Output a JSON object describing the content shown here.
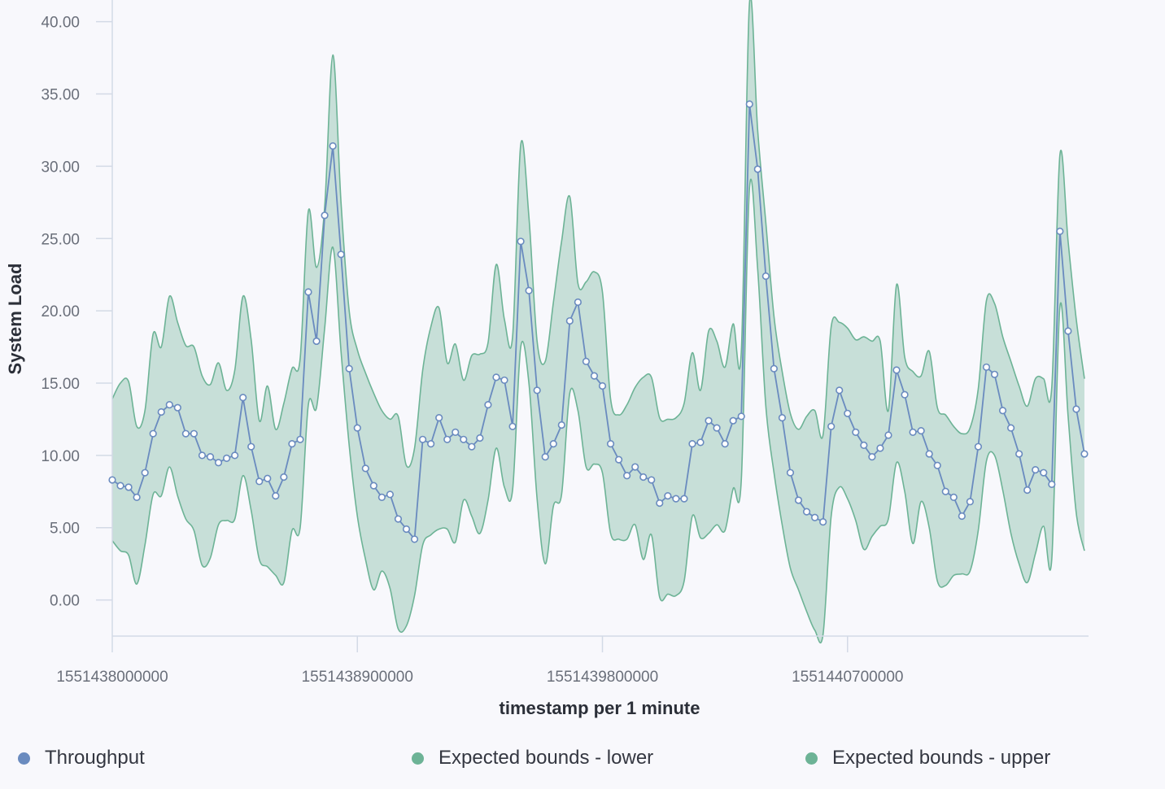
{
  "chart_data": {
    "type": "line",
    "title": "",
    "xlabel": "timestamp per 1 minute",
    "ylabel": "System Load",
    "xlim": [
      1551438000000,
      1551441585000
    ],
    "ylim": [
      -2.5,
      41.5
    ],
    "x_start": 1551438000000,
    "x_step": 30000,
    "x_ticks": [
      1551438000000,
      1551438900000,
      1551439800000,
      1551440700000
    ],
    "x_tick_labels": [
      "1551438000000",
      "1551438900000",
      "1551439800000",
      "1551440700000"
    ],
    "y_ticks": [
      0,
      5,
      10,
      15,
      20,
      25,
      30,
      35,
      40
    ],
    "y_tick_labels": [
      "0.00",
      "5.00",
      "10.00",
      "15.00",
      "20.00",
      "25.00",
      "30.00",
      "35.00",
      "40.00"
    ],
    "grid": false,
    "legend_position": "bottom",
    "series": [
      {
        "name": "Throughput",
        "role": "line",
        "color": "#6a8bbf",
        "values": [
          8.3,
          7.9,
          7.8,
          7.1,
          8.8,
          11.5,
          13.0,
          13.5,
          13.3,
          11.5,
          11.5,
          10.0,
          9.9,
          9.5,
          9.8,
          10.0,
          14.0,
          10.6,
          8.2,
          8.4,
          7.2,
          8.5,
          10.8,
          11.1,
          21.3,
          17.9,
          26.6,
          31.4,
          23.9,
          16.0,
          11.9,
          9.1,
          7.9,
          7.1,
          7.3,
          5.6,
          4.9,
          4.2,
          11.1,
          10.8,
          12.6,
          11.1,
          11.6,
          11.1,
          10.6,
          11.2,
          13.5,
          15.4,
          15.2,
          12.0,
          24.8,
          21.4,
          14.5,
          9.9,
          10.8,
          12.1,
          19.3,
          20.6,
          16.5,
          15.5,
          14.8,
          10.8,
          9.7,
          8.6,
          9.2,
          8.5,
          8.3,
          6.7,
          7.2,
          7.0,
          7.0,
          10.8,
          10.9,
          12.4,
          11.9,
          10.8,
          12.4,
          12.7,
          34.3,
          29.8,
          22.4,
          16.0,
          12.6,
          8.8,
          6.9,
          6.1,
          5.7,
          5.4,
          12.0,
          14.5,
          12.9,
          11.6,
          10.7,
          9.9,
          10.5,
          11.4,
          15.9,
          14.2,
          11.6,
          11.7,
          10.1,
          9.3,
          7.5,
          7.1,
          5.8,
          6.8,
          10.6,
          16.1,
          15.6,
          13.1,
          11.9,
          10.1,
          7.6,
          9.0,
          8.8,
          8.0,
          25.5,
          18.6,
          13.2,
          10.1
        ]
      },
      {
        "name": "Expected bounds - lower",
        "role": "band-lower",
        "color": "#6db396",
        "values": [
          4.1,
          3.4,
          3.1,
          1.1,
          3.8,
          7.3,
          7.2,
          9.2,
          7.2,
          5.6,
          4.8,
          2.4,
          2.9,
          5.2,
          5.5,
          5.6,
          8.6,
          6.2,
          2.8,
          2.3,
          1.7,
          1.2,
          4.8,
          5.0,
          13.5,
          13.3,
          18.8,
          24.4,
          17.2,
          10.7,
          5.8,
          2.8,
          0.7,
          2.0,
          0.8,
          -2.0,
          -1.8,
          0.3,
          3.8,
          4.5,
          4.9,
          4.9,
          4.0,
          6.9,
          5.8,
          4.6,
          6.9,
          10.5,
          7.8,
          7.6,
          17.5,
          15.0,
          7.0,
          2.5,
          6.5,
          7.3,
          14.3,
          13.1,
          9.2,
          9.4,
          8.8,
          4.6,
          4.2,
          4.2,
          5.2,
          2.8,
          4.5,
          0.2,
          0.4,
          0.3,
          1.3,
          5.8,
          4.3,
          4.6,
          5.2,
          4.8,
          7.7,
          8.3,
          28.5,
          22.9,
          13.4,
          8.8,
          5.2,
          2.2,
          0.7,
          -0.8,
          -2.1,
          -2.4,
          5.8,
          7.8,
          7.0,
          5.5,
          3.5,
          4.4,
          5.1,
          5.6,
          9.5,
          7.5,
          3.9,
          6.8,
          5.0,
          1.3,
          1.0,
          1.7,
          1.8,
          2.0,
          4.8,
          9.6,
          10.0,
          7.6,
          4.6,
          2.5,
          1.2,
          3.2,
          5.1,
          2.8,
          20.3,
          12.7,
          6.0,
          3.4
        ]
      },
      {
        "name": "Expected bounds - upper",
        "role": "band-upper",
        "color": "#6db396",
        "values": [
          13.9,
          15.0,
          15.1,
          12.0,
          13.1,
          18.4,
          17.5,
          21.0,
          19.2,
          17.6,
          17.5,
          15.5,
          14.9,
          16.4,
          14.5,
          15.9,
          21.0,
          18.0,
          12.4,
          14.8,
          11.8,
          13.6,
          16.0,
          16.7,
          26.9,
          23.0,
          27.2,
          37.7,
          27.5,
          20.0,
          17.3,
          15.7,
          14.3,
          13.1,
          12.5,
          12.7,
          9.3,
          10.5,
          15.9,
          18.9,
          20.2,
          16.4,
          17.7,
          15.2,
          16.9,
          17.0,
          17.8,
          23.2,
          19.4,
          18.2,
          31.5,
          26.5,
          17.9,
          16.5,
          20.6,
          24.8,
          27.9,
          21.9,
          22.0,
          22.7,
          21.3,
          13.9,
          12.8,
          13.5,
          14.7,
          15.4,
          15.4,
          12.6,
          12.5,
          12.6,
          13.6,
          17.1,
          14.5,
          18.6,
          17.9,
          16.1,
          19.1,
          17.2,
          41.3,
          32.5,
          26.1,
          19.6,
          15.8,
          12.9,
          11.8,
          12.7,
          13.1,
          11.4,
          18.9,
          19.2,
          18.8,
          18.0,
          18.2,
          17.9,
          17.9,
          13.1,
          21.8,
          16.8,
          15.8,
          15.5,
          17.2,
          13.3,
          12.8,
          12.0,
          11.5,
          11.9,
          14.6,
          20.7,
          20.5,
          18.2,
          16.5,
          14.8,
          13.4,
          15.3,
          15.3,
          14.7,
          30.8,
          24.8,
          19.4,
          15.3
        ]
      }
    ]
  },
  "legend": [
    {
      "label": "Throughput",
      "color": "#6a8bbf"
    },
    {
      "label": "Expected bounds - lower",
      "color": "#6db396"
    },
    {
      "label": "Expected bounds - upper",
      "color": "#6db396"
    }
  ]
}
